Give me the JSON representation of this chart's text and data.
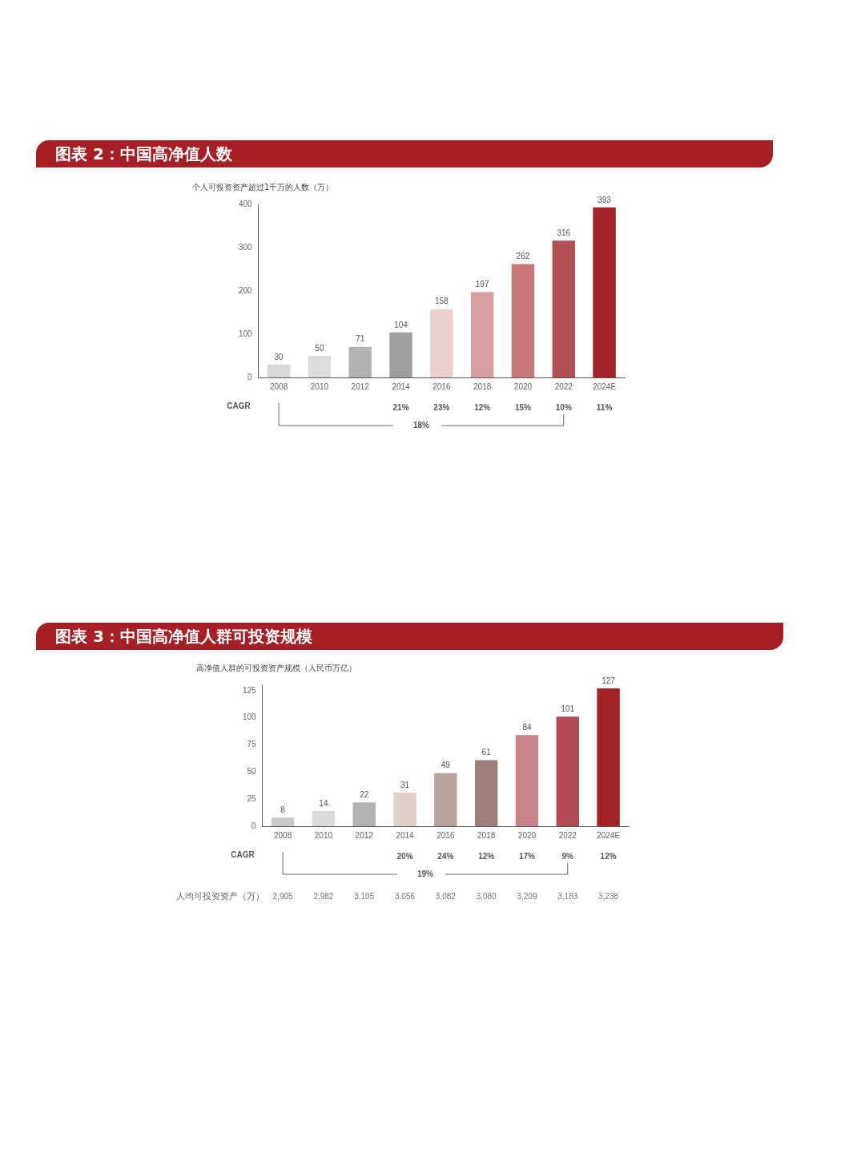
{
  "chart_data": [
    {
      "type": "bar",
      "title": "图表 2：中国高净值人数",
      "subtitle": "个人可投资资产超过1千万的人数（万）",
      "categories": [
        "2008",
        "2010",
        "2012",
        "2014",
        "2016",
        "2018",
        "2020",
        "2022",
        "2024E"
      ],
      "values": [
        30,
        50,
        71,
        104,
        158,
        197,
        262,
        316,
        393
      ],
      "colors": [
        "#d9d9d9",
        "#dcdcdc",
        "#b3b3b3",
        "#a09f9f",
        "#ecd0d0",
        "#d9a0a2",
        "#c97777",
        "#b34f53",
        "#a32328"
      ],
      "ylim": [
        0,
        400
      ],
      "yticks": [
        0,
        100,
        200,
        300,
        400
      ],
      "grid": false,
      "legend": false,
      "data_labels": true,
      "annotations": [
        "CAGR",
        "21%",
        "23%",
        "12%",
        "15%",
        "10%",
        "11%",
        "18%"
      ]
    },
    {
      "type": "bar",
      "title": "图表 3：中国高净值人群可投资规模",
      "subtitle": "高净值人群的可投资资产规模（人民币万亿）",
      "categories": [
        "2008",
        "2010",
        "2012",
        "2014",
        "2016",
        "2018",
        "2020",
        "2022",
        "2024E"
      ],
      "values": [
        8,
        14,
        22,
        31,
        49,
        61,
        84,
        101,
        127
      ],
      "colors": [
        "#c9c9c9",
        "#dadada",
        "#b3b3b3",
        "#dfd0ca",
        "#b9a49c",
        "#9e8079",
        "#c88389",
        "#b24b56",
        "#a22226"
      ],
      "ylim": [
        0,
        130
      ],
      "yticks": [
        0,
        25,
        50,
        75,
        100,
        125
      ],
      "grid": false,
      "legend": false,
      "data_labels": true,
      "annotations": [
        "CAGR",
        "20%",
        "24%",
        "12%",
        "17%",
        "9%",
        "12%",
        "19%",
        "人均可投资资产（万）",
        "2,905",
        "2,982",
        "3,105",
        "3,056",
        "3,082",
        "3,080",
        "3,209",
        "3,183",
        "3,238"
      ]
    }
  ]
}
